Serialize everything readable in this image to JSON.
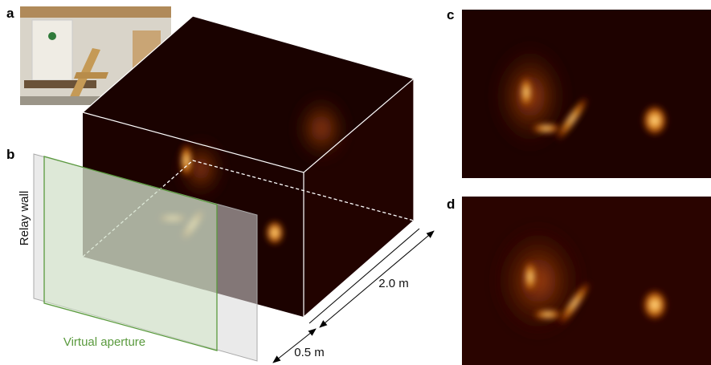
{
  "panel_labels": [
    "a",
    "b",
    "c",
    "d"
  ],
  "relay_wall": "Relay wall",
  "virtual_aperture": "Virtual aperture",
  "dimensions": {
    "depth": "2.0 m",
    "width": "0.5 m"
  }
}
